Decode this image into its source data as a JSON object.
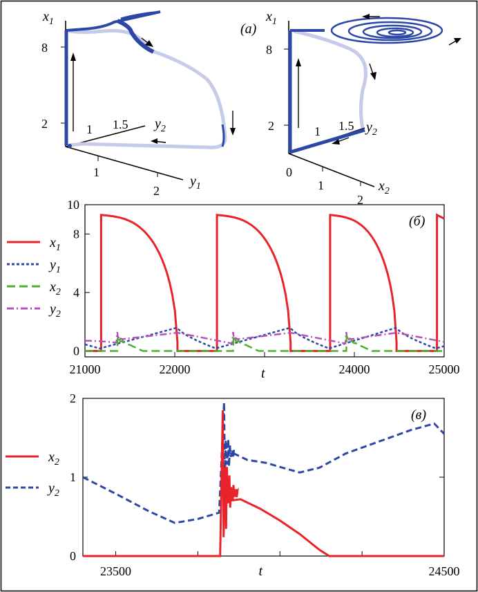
{
  "figure": {
    "border_color": "#000000"
  },
  "colors": {
    "red": "#e8232a",
    "blue": "#2c47a6",
    "green": "#4caf2d",
    "magenta": "#b552b8",
    "pale": "#c5cbe8"
  },
  "chart_data": [
    {
      "id": "a-left",
      "type": "scatter",
      "title": "(a)",
      "projection": "3d",
      "axes": {
        "x1": {
          "label": "x",
          "sub": "1",
          "ticks": [
            2,
            8
          ]
        },
        "y1": {
          "label": "y",
          "sub": "1",
          "ticks": [
            1,
            2
          ]
        },
        "y2": {
          "label": "y",
          "sub": "2",
          "ticks": [
            1,
            1.5
          ]
        }
      }
    },
    {
      "id": "a-right",
      "type": "scatter",
      "projection": "3d",
      "axes": {
        "x1": {
          "label": "x",
          "sub": "1",
          "ticks": [
            2,
            8
          ]
        },
        "x2": {
          "label": "x",
          "sub": "2",
          "ticks": [
            0,
            1,
            2
          ]
        },
        "y2": {
          "label": "y",
          "sub": "2",
          "ticks": [
            1,
            1.5
          ]
        }
      }
    },
    {
      "id": "b",
      "type": "line",
      "title": "(б)",
      "xlabel": "t",
      "xlim": [
        21000,
        25000
      ],
      "ylim": [
        -0.4,
        10
      ],
      "xticks": [
        21000,
        22000,
        23000,
        24000,
        25000
      ],
      "xtick_labels": [
        "21000",
        "22000",
        "",
        "24000",
        "25000"
      ],
      "yticks": [
        0,
        4,
        8,
        10
      ],
      "legend": [
        {
          "label": "x",
          "sub": "1",
          "style": "solid"
        },
        {
          "label": "y",
          "sub": "1",
          "style": "dotted"
        },
        {
          "label": "x",
          "sub": "2",
          "style": "dashed"
        },
        {
          "label": "y",
          "sub": "2",
          "style": "dashdot"
        }
      ],
      "spike_onsets": [
        21180,
        22470,
        23730,
        24920
      ],
      "spike_ends": [
        22030,
        23290,
        24470
      ],
      "x1_peak": 9.3,
      "y1_range": [
        0.0,
        1.6
      ],
      "y2_range": [
        0.4,
        1.5
      ]
    },
    {
      "id": "c",
      "type": "line",
      "title": "(в)",
      "xlabel": "t",
      "xlim": [
        23400,
        24500
      ],
      "ylim": [
        0,
        2
      ],
      "xticks": [
        23500,
        23750,
        24000,
        24250,
        24500
      ],
      "xtick_labels": [
        "23500",
        "",
        "t",
        "",
        "24500"
      ],
      "yticks": [
        0,
        1,
        2
      ],
      "legend": [
        {
          "label": "x",
          "sub": "2",
          "style": "solid"
        },
        {
          "label": "y",
          "sub": "2",
          "style": "dashed"
        }
      ],
      "series": [
        {
          "name": "y2",
          "points": [
            [
              23400,
              1.0
            ],
            [
              23500,
              0.79
            ],
            [
              23600,
              0.57
            ],
            [
              23680,
              0.42
            ],
            [
              23750,
              0.47
            ],
            [
              23815,
              0.55
            ],
            [
              23830,
              1.95
            ],
            [
              23860,
              1.3
            ],
            [
              23900,
              1.22
            ],
            [
              23960,
              1.18
            ],
            [
              24000,
              1.13
            ],
            [
              24060,
              1.06
            ],
            [
              24120,
              1.12
            ],
            [
              24200,
              1.3
            ],
            [
              24300,
              1.45
            ],
            [
              24400,
              1.6
            ],
            [
              24470,
              1.68
            ],
            [
              24500,
              1.55
            ]
          ]
        },
        {
          "name": "x2",
          "points": [
            [
              23400,
              0
            ],
            [
              23818,
              0
            ],
            [
              23826,
              1.85
            ],
            [
              23840,
              0.7
            ],
            [
              23880,
              0.72
            ],
            [
              23940,
              0.6
            ],
            [
              24000,
              0.45
            ],
            [
              24060,
              0.28
            ],
            [
              24120,
              0.08
            ],
            [
              24150,
              0.0
            ],
            [
              24500,
              0.0
            ]
          ]
        }
      ]
    }
  ]
}
